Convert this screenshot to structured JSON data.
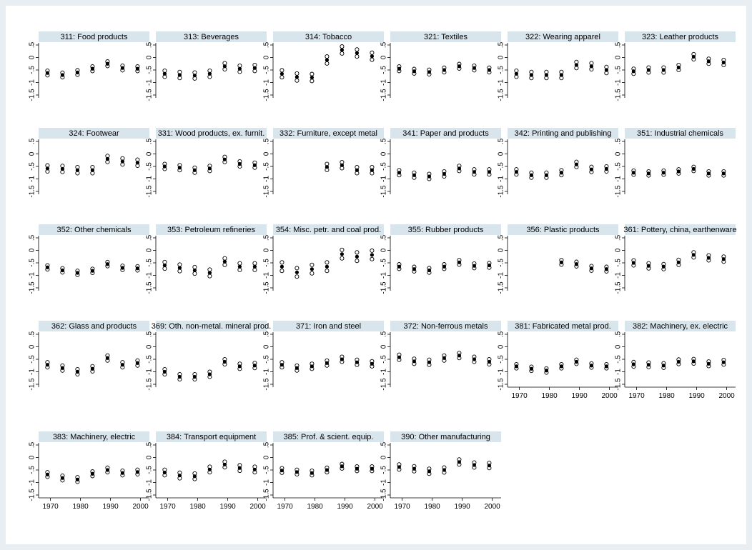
{
  "chart_data": {
    "type": "scatter",
    "layout": "small multiples, 6 columns",
    "ylim": [
      -1.5,
      0.5
    ],
    "yticks": [
      0.5,
      0,
      -0.5,
      -1,
      -1.5
    ],
    "ytick_labels": [
      ".5",
      "0",
      "-.5",
      "-1",
      "-1.5"
    ],
    "xlim": [
      1967,
      2002
    ],
    "xticks": [
      1970,
      1980,
      1990,
      2000
    ],
    "xtick_labels": [
      "1970",
      "1980",
      "1990",
      "2000"
    ],
    "grid": false,
    "legend": "none",
    "marker_style": {
      "estimate": "filled circle",
      "bounds": "hollow circles"
    },
    "colors": {
      "header_bg": "#d9e5ec",
      "outer_bg": "#e8eef2",
      "panel_bg": "#ffffff",
      "marker": "#000000"
    },
    "years": [
      1969,
      1974,
      1979,
      1984,
      1989,
      1994,
      1999
    ],
    "panels": [
      {
        "title": "311: Food products",
        "estimate": [
          -0.62,
          -0.7,
          -0.6,
          -0.45,
          -0.25,
          -0.42,
          -0.45
        ],
        "spread": 0.09
      },
      {
        "title": "313: Beverages",
        "estimate": [
          -0.65,
          -0.7,
          -0.72,
          -0.65,
          -0.35,
          -0.45,
          -0.42
        ],
        "spread": 0.12
      },
      {
        "title": "314: Tobacco",
        "estimate": [
          -0.65,
          -0.78,
          -0.8,
          -0.1,
          0.3,
          0.18,
          0.05
        ],
        "spread": 0.14
      },
      {
        "title": "321: Textiles",
        "estimate": [
          -0.45,
          -0.55,
          -0.58,
          -0.5,
          -0.35,
          -0.42,
          -0.5
        ],
        "spread": 0.09
      },
      {
        "title": "322: Wearing apparel",
        "estimate": [
          -0.65,
          -0.7,
          -0.7,
          -0.7,
          -0.3,
          -0.35,
          -0.5
        ],
        "spread": 0.12
      },
      {
        "title": "323: Leather products",
        "estimate": [
          -0.55,
          -0.5,
          -0.5,
          -0.4,
          0.03,
          -0.15,
          -0.2
        ],
        "spread": 0.1
      },
      {
        "title": "324: Footwear",
        "estimate": [
          -0.58,
          -0.6,
          -0.65,
          -0.65,
          -0.2,
          -0.3,
          -0.35
        ],
        "spread": 0.12
      },
      {
        "title": "331: Wood products, ex. furnit.",
        "estimate": [
          -0.5,
          -0.55,
          -0.65,
          -0.58,
          -0.22,
          -0.4,
          -0.45
        ],
        "spread": 0.1
      },
      {
        "title": "332: Furniture, except metal",
        "estimate": [
          null,
          null,
          null,
          -0.52,
          -0.45,
          -0.65,
          -0.65
        ],
        "spread": 0.12
      },
      {
        "title": "341: Paper and products",
        "estimate": [
          -0.75,
          -0.85,
          -0.9,
          -0.8,
          -0.58,
          -0.72,
          -0.72
        ],
        "spread": 0.1
      },
      {
        "title": "342: Printing and publishing",
        "estimate": [
          -0.72,
          -0.85,
          -0.85,
          -0.75,
          -0.42,
          -0.62,
          -0.6
        ],
        "spread": 0.1
      },
      {
        "title": "351: Industrial chemicals",
        "estimate": [
          -0.75,
          -0.78,
          -0.75,
          -0.7,
          -0.6,
          -0.78,
          -0.78
        ],
        "spread": 0.08
      },
      {
        "title": "352: Other chemicals",
        "estimate": [
          -0.68,
          -0.8,
          -0.9,
          -0.82,
          -0.55,
          -0.7,
          -0.72
        ],
        "spread": 0.08
      },
      {
        "title": "353: Petroleum refineries",
        "estimate": [
          -0.6,
          -0.7,
          -0.8,
          -0.9,
          -0.45,
          -0.65,
          -0.65
        ],
        "spread": 0.13
      },
      {
        "title": "354: Misc. petr. and coal prod.",
        "estimate": [
          -0.65,
          -0.88,
          -0.75,
          -0.65,
          -0.15,
          -0.25,
          -0.18
        ],
        "spread": 0.17
      },
      {
        "title": "355: Rubber products",
        "estimate": [
          -0.65,
          -0.75,
          -0.8,
          -0.65,
          -0.48,
          -0.62,
          -0.6
        ],
        "spread": 0.09
      },
      {
        "title": "356: Plastic products",
        "estimate": [
          null,
          null,
          null,
          -0.48,
          -0.55,
          -0.72,
          -0.75
        ],
        "spread": 0.09
      },
      {
        "title": "361: Pottery, china, earthenware",
        "estimate": [
          -0.5,
          -0.62,
          -0.65,
          -0.48,
          -0.18,
          -0.3,
          -0.35
        ],
        "spread": 0.1
      },
      {
        "title": "362: Glass and products",
        "estimate": [
          -0.72,
          -0.85,
          -1.0,
          -0.88,
          -0.45,
          -0.72,
          -0.65
        ],
        "spread": 0.1
      },
      {
        "title": "369: Oth. non-metal. mineral prod.",
        "estimate": [
          -1.0,
          -1.2,
          -1.2,
          -1.1,
          -0.6,
          -0.78,
          -0.75
        ],
        "spread": 0.1
      },
      {
        "title": "371: Iron and steel",
        "estimate": [
          -0.72,
          -0.85,
          -0.78,
          -0.65,
          -0.5,
          -0.62,
          -0.68
        ],
        "spread": 0.1
      },
      {
        "title": "372: Non-ferrous metals",
        "estimate": [
          -0.42,
          -0.58,
          -0.62,
          -0.45,
          -0.35,
          -0.5,
          -0.6
        ],
        "spread": 0.1
      },
      {
        "title": "381: Fabricated metal prod.",
        "estimate": [
          -0.78,
          -0.88,
          -0.95,
          -0.78,
          -0.6,
          -0.75,
          -0.78
        ],
        "spread": 0.08
      },
      {
        "title": "382: Machinery, ex. electric",
        "estimate": [
          -0.7,
          -0.72,
          -0.75,
          -0.6,
          -0.58,
          -0.68,
          -0.62
        ],
        "spread": 0.09
      },
      {
        "title": "383: Machinery, electric",
        "estimate": [
          -0.68,
          -0.82,
          -0.88,
          -0.65,
          -0.5,
          -0.62,
          -0.58
        ],
        "spread": 0.09
      },
      {
        "title": "384: Transport equipment",
        "estimate": [
          -0.6,
          -0.72,
          -0.75,
          -0.48,
          -0.28,
          -0.42,
          -0.48
        ],
        "spread": 0.11
      },
      {
        "title": "385: Prof. & scient. equip.",
        "estimate": [
          -0.52,
          -0.58,
          -0.62,
          -0.5,
          -0.35,
          -0.45,
          -0.45
        ],
        "spread": 0.09
      },
      {
        "title": "390: Other manufacturing",
        "estimate": [
          -0.38,
          -0.45,
          -0.55,
          -0.5,
          -0.18,
          -0.3,
          -0.32
        ],
        "spread": 0.1
      }
    ]
  }
}
